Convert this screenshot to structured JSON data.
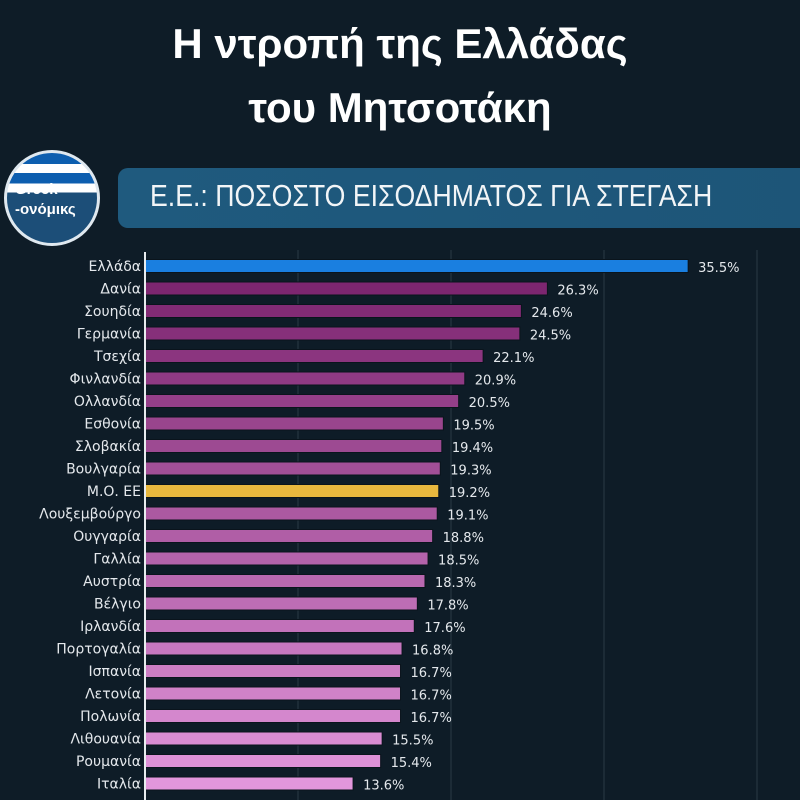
{
  "headline": {
    "line1": "Η ντροπή της Ελλάδας",
    "line2": "του Μητσοτάκη"
  },
  "logo": {
    "line1": "Greek-",
    "line2": "-ονόμικς"
  },
  "colors": {
    "highlight": "#1a7fe0",
    "average": "#e8b83e",
    "bar_start": "#7d2670",
    "bar_end": "#e296dc",
    "background": "#0e1c27"
  },
  "chart_data": {
    "type": "bar",
    "orientation": "horizontal",
    "title": "Ε.Ε.: ΠΟΣΟΣΤΟ ΕΙΣΟΔΗΜΑΤΟΣ ΓΙΑ ΣΤΕΓΑΣΗ",
    "xlabel": "",
    "ylabel": "",
    "xlim": [
      0,
      40
    ],
    "grid": true,
    "categories": [
      "Ελλάδα",
      "Δανία",
      "Σουηδία",
      "Γερμανία",
      "Τσεχία",
      "Φινλανδία",
      "Ολλανδία",
      "Εσθονία",
      "Σλοβακία",
      "Βουλγαρία",
      "Μ.Ο. ΕΕ",
      "Λουξεμβούργο",
      "Ουγγαρία",
      "Γαλλία",
      "Αυστρία",
      "Βέλγιο",
      "Ιρλανδία",
      "Πορτογαλία",
      "Ισπανία",
      "Λετονία",
      "Πολωνία",
      "Λιθουανία",
      "Ρουμανία",
      "Ιταλία"
    ],
    "values": [
      35.5,
      26.3,
      24.6,
      24.5,
      22.1,
      20.9,
      20.5,
      19.5,
      19.4,
      19.3,
      19.2,
      19.1,
      18.8,
      18.5,
      18.3,
      17.8,
      17.6,
      16.8,
      16.7,
      16.7,
      16.7,
      15.5,
      15.4,
      13.6
    ],
    "labels": [
      "35.5%",
      "26.3%",
      "24.6%",
      "24.5%",
      "22.1%",
      "20.9%",
      "20.5%",
      "19.5%",
      "19.4%",
      "19.3%",
      "19.2%",
      "19.1%",
      "18.8%",
      "18.5%",
      "18.3%",
      "17.8%",
      "17.6%",
      "16.8%",
      "16.7%",
      "16.7%",
      "16.7%",
      "15.5%",
      "15.4%",
      "13.6%"
    ]
  }
}
